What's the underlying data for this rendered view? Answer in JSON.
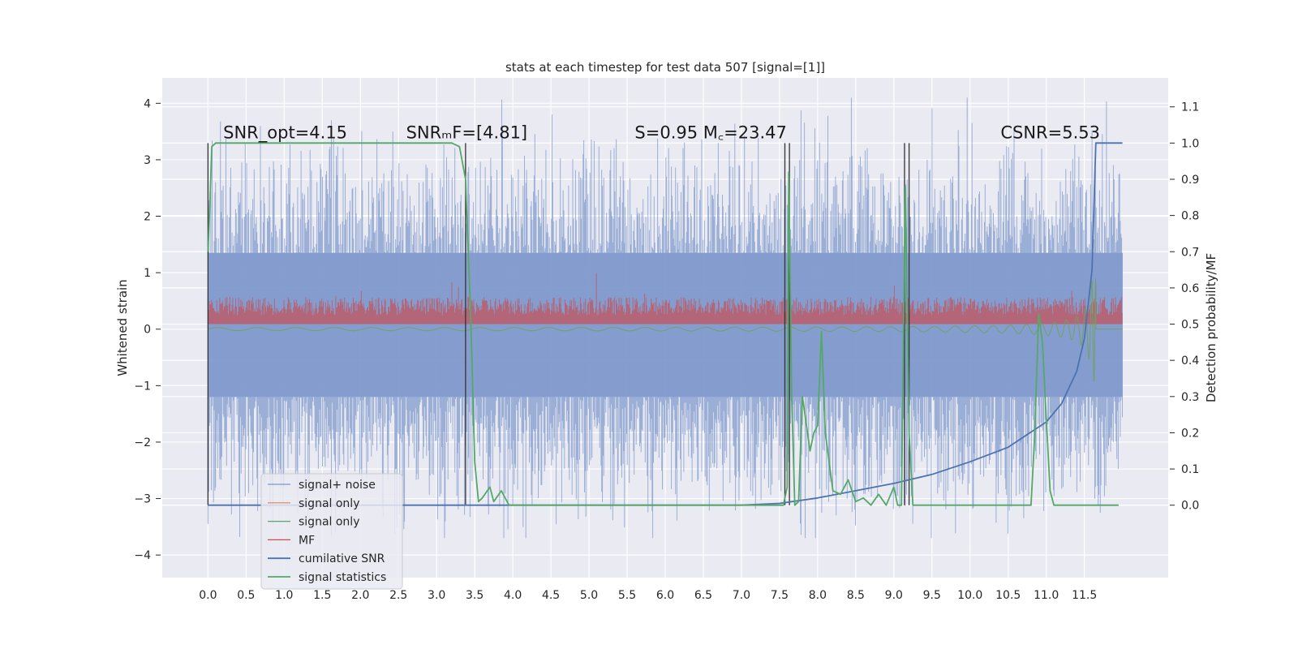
{
  "chart_data": {
    "type": "line",
    "title": "stats at each timestep for test data 507 [signal=[1]]",
    "xlabel": "",
    "ylabel": "Whitened strain",
    "ylabel_right": "Detection probability/MF",
    "xlim": [
      -0.6,
      12.6
    ],
    "ylim": [
      -4.4,
      4.45
    ],
    "ylim_right": [
      -0.2,
      1.18
    ],
    "x_ticks": [
      "0.0",
      "0.5",
      "1.0",
      "1.5",
      "2.0",
      "2.5",
      "3.0",
      "3.5",
      "4.0",
      "4.5",
      "5.0",
      "5.5",
      "6.0",
      "6.5",
      "7.0",
      "7.5",
      "8.0",
      "8.5",
      "9.0",
      "9.5",
      "10.0",
      "10.5",
      "11.0",
      "11.5"
    ],
    "y_ticks": [
      "4",
      "3",
      "2",
      "1",
      "0",
      "−1",
      "−2",
      "−3",
      "−4"
    ],
    "y_ticks_right": [
      "1.1",
      "1.0",
      "0.9",
      "0.8",
      "0.7",
      "0.6",
      "0.5",
      "0.4",
      "0.3",
      "0.2",
      "0.1",
      "0.0"
    ],
    "grid": true,
    "legend_placement": "lower-left",
    "annotations": [
      {
        "text": "SNR_opt=4.15",
        "x": 0.2,
        "y": 1.0
      },
      {
        "text": "SNRₘF=[4.81]",
        "x": 2.6,
        "y": 1.0
      },
      {
        "text": "S=0.95   M꜀=23.47",
        "x": 5.6,
        "y": 1.0
      },
      {
        "text": "CSNR=5.53",
        "x": 10.4,
        "y": 1.0
      }
    ],
    "series": [
      {
        "name": "signal+ noise",
        "color": "#7f99cc",
        "axis": "left",
        "kind": "noise",
        "x_range": [
          0.0,
          12.0
        ],
        "amplitude": 1.5,
        "peak_min": -3.7,
        "peak_max": 4.1
      },
      {
        "name": "signal only",
        "color": "#dd8452",
        "axis": "left",
        "kind": "chirp",
        "merger": 11.65
      },
      {
        "name": "signal only",
        "color": "#55a868",
        "axis": "left",
        "kind": "chirp",
        "merger": 11.65
      },
      {
        "name": "MF",
        "color": "#c44e52",
        "axis": "right",
        "kind": "band",
        "x_range": [
          0.0,
          12.0
        ],
        "base": 0.5,
        "top_mean": 0.55,
        "top_max": 0.66
      },
      {
        "name": "cumilative SNR",
        "color": "#4c72b0",
        "axis": "right",
        "x": [
          0.0,
          7.0,
          7.5,
          8.0,
          8.5,
          9.0,
          9.5,
          10.0,
          10.5,
          11.0,
          11.2,
          11.4,
          11.5,
          11.6,
          11.65,
          12.0
        ],
        "y": [
          0.0,
          0.0,
          0.005,
          0.02,
          0.04,
          0.06,
          0.085,
          0.12,
          0.16,
          0.23,
          0.28,
          0.37,
          0.46,
          0.65,
          1.0,
          1.0
        ]
      },
      {
        "name": "signal statistics",
        "color": "#55a868",
        "axis": "right",
        "x": [
          0.0,
          0.02,
          0.05,
          0.1,
          0.3,
          3.2,
          3.3,
          3.38,
          3.45,
          3.5,
          3.55,
          3.6,
          3.7,
          3.75,
          3.85,
          3.95,
          4.0,
          4.3,
          7.55,
          7.6,
          7.62,
          7.66,
          7.7,
          7.75,
          7.8,
          7.9,
          7.95,
          8.0,
          8.05,
          8.1,
          8.15,
          8.2,
          8.3,
          8.4,
          8.5,
          8.6,
          8.7,
          8.8,
          8.9,
          9.0,
          9.05,
          9.1,
          9.15,
          9.2,
          9.25,
          9.3,
          10.8,
          10.85,
          10.9,
          10.95,
          11.0,
          11.05,
          11.1,
          11.2,
          11.5,
          11.9,
          11.95
        ],
        "y": [
          0.7,
          0.8,
          0.99,
          1.0,
          1.0,
          1.0,
          0.99,
          0.9,
          0.5,
          0.12,
          0.01,
          0.02,
          0.05,
          0.01,
          0.04,
          0.0,
          0.0,
          0.0,
          0.0,
          0.05,
          0.92,
          0.3,
          0.0,
          0.01,
          0.3,
          0.15,
          0.2,
          0.22,
          0.48,
          0.2,
          0.12,
          0.04,
          0.03,
          0.07,
          0.01,
          0.02,
          0.0,
          0.03,
          0.0,
          0.05,
          0.0,
          0.0,
          0.88,
          0.2,
          0.0,
          0.0,
          0.0,
          0.2,
          0.53,
          0.45,
          0.24,
          0.04,
          0.0,
          0.0,
          0.0,
          0.0,
          0.0
        ]
      }
    ],
    "vertical_markers": [
      0.0,
      3.38,
      7.57,
      7.63,
      9.14,
      9.2
    ],
    "legend": [
      {
        "label": "signal+ noise",
        "color": "#7f99cc"
      },
      {
        "label": "signal only",
        "color": "#dd8452"
      },
      {
        "label": "signal only",
        "color": "#55a868"
      },
      {
        "label": "MF",
        "color": "#c44e52"
      },
      {
        "label": "cumilative SNR",
        "color": "#4c72b0"
      },
      {
        "label": "signal statistics",
        "color": "#55a868"
      }
    ]
  }
}
